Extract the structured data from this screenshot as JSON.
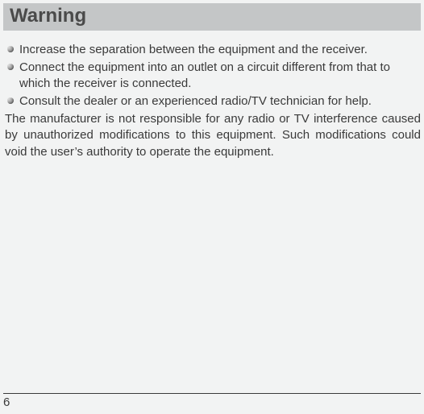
{
  "colors": {
    "page_bg": "#f2f3f3",
    "heading_bg": "#c4c6c7",
    "heading_text": "#4a4a4a",
    "body_text": "#3a3a3a",
    "rule": "#3a3a3a",
    "bullet_dark": "#6b6b6b",
    "bullet_light": "#d0d0d0"
  },
  "typography": {
    "heading_fontsize_pt": 18,
    "body_fontsize_pt": 11,
    "font_family": "Arial"
  },
  "heading": "Warning",
  "bullets": [
    "Increase the separation between the equipment and the receiver.",
    "Connect the equipment into an outlet on a circuit different from that to which the receiver is connected.",
    "Consult the dealer or an experienced radio/TV technician for help."
  ],
  "paragraph": "The manufacturer is not responsible for any radio or TV interference caused by unauthorized modifications to this equipment. Such modifications could void the user’s authority to operate the equipment.",
  "page_number": "6"
}
